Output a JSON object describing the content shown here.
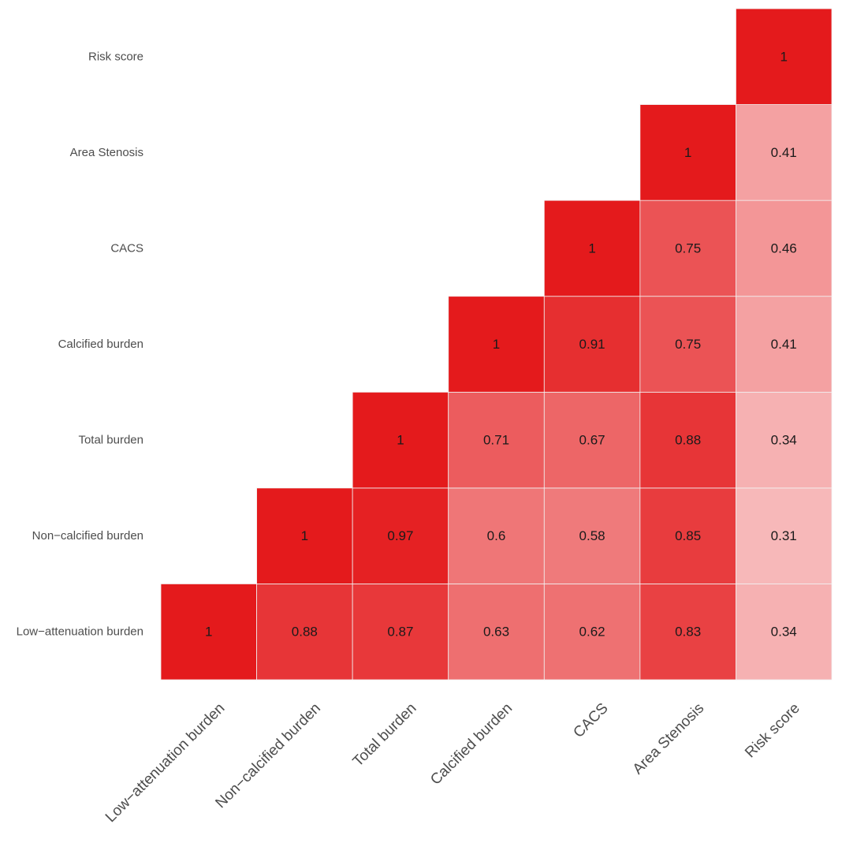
{
  "chart_data": {
    "type": "heatmap",
    "variables": [
      "Low−attenuation burden",
      "Non−calcified burden",
      "Total burden",
      "Calcified burden",
      "CACS",
      "Area Stenosis",
      "Risk score"
    ],
    "matrix": [
      [
        1,
        null,
        null,
        null,
        null,
        null,
        null
      ],
      [
        0.88,
        1,
        null,
        null,
        null,
        null,
        null
      ],
      [
        0.87,
        0.97,
        1,
        null,
        null,
        null,
        null
      ],
      [
        0.63,
        0.6,
        0.71,
        1,
        null,
        null,
        null
      ],
      [
        0.62,
        0.58,
        0.67,
        0.91,
        1,
        null,
        null
      ],
      [
        0.83,
        0.85,
        0.88,
        0.75,
        0.75,
        1,
        null
      ],
      [
        0.34,
        0.31,
        0.34,
        0.41,
        0.46,
        0.41,
        1
      ]
    ],
    "value_range": [
      0,
      1
    ],
    "colors": {
      "low": "#ffffff",
      "high": "#e41a1c",
      "grid": "#f2f2f2"
    },
    "triangle": "upper",
    "legend": "none"
  }
}
